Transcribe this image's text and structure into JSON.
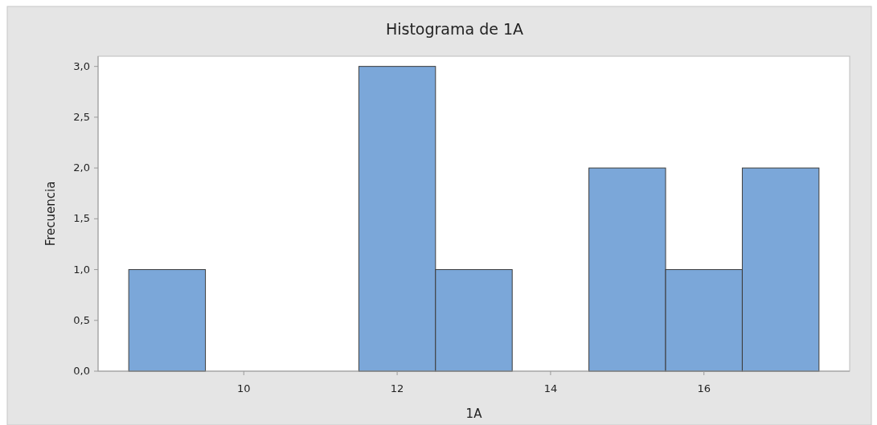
{
  "chart_data": {
    "type": "histogram",
    "title": "Histograma de 1A",
    "xlabel": "1A",
    "ylabel": "Frecuencia",
    "bins": [
      8.5,
      9.5,
      10.5,
      11.5,
      12.5,
      13.5,
      14.5,
      15.5,
      16.5,
      17.5
    ],
    "values": [
      1,
      0,
      0,
      3,
      1,
      0,
      2,
      1,
      2
    ],
    "color": "#7ba7d9",
    "xlim": [
      8.1,
      17.9
    ],
    "xticks": [
      10,
      12,
      14,
      16
    ],
    "ylim": [
      0,
      3.1
    ],
    "yticks": [
      {
        "value": 0,
        "label": "0,0"
      },
      {
        "value": 0.5,
        "label": "0,5"
      },
      {
        "value": 1,
        "label": "1,0"
      },
      {
        "value": 1.5,
        "label": "1,5"
      },
      {
        "value": 2,
        "label": "2,0"
      },
      {
        "value": 2.5,
        "label": "2,5"
      },
      {
        "value": 3,
        "label": "3,0"
      }
    ],
    "grid": false
  }
}
